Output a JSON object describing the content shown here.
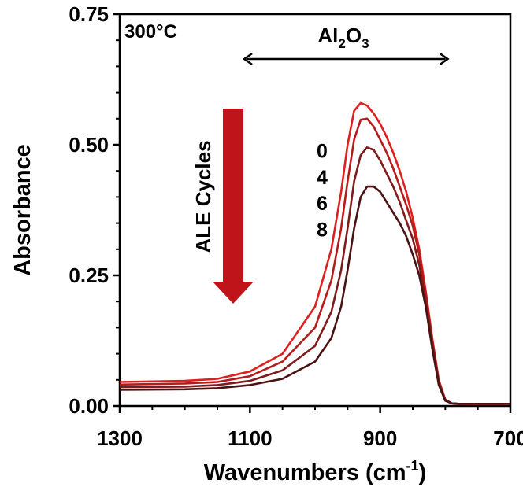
{
  "chart_data": {
    "type": "line",
    "xlabel": "Wavenumbers (cm",
    "xlabel_sup": "-1",
    "xlabel_close": ")",
    "ylabel": "Absorbance",
    "xlim": [
      1300,
      700
    ],
    "ylim": [
      0,
      0.75
    ],
    "xticks": [
      1300,
      1100,
      900,
      700
    ],
    "xtick_labels": [
      "1300",
      "1100",
      "900",
      "700"
    ],
    "yticks": [
      0,
      0.25,
      0.5,
      0.75
    ],
    "ytick_labels": [
      "0.00",
      "0.25",
      "0.50",
      "0.75"
    ],
    "x_reversed": true,
    "grid": false,
    "annotations": {
      "temperature": "300°C",
      "region_label": "Al",
      "region_sub1": "2",
      "region_mid": "O",
      "region_sub2": "3",
      "region_range": [
        1110,
        795
      ],
      "arrow_label": "ALE Cycles"
    },
    "series": [
      {
        "name": "0",
        "color": "#dd1f1f",
        "x": [
          1300,
          1200,
          1150,
          1100,
          1050,
          1000,
          975,
          960,
          950,
          940,
          930,
          920,
          910,
          900,
          890,
          880,
          870,
          860,
          850,
          840,
          830,
          820,
          810,
          800,
          790,
          780,
          760,
          740,
          720,
          700
        ],
        "y": [
          0.046,
          0.048,
          0.052,
          0.066,
          0.1,
          0.19,
          0.3,
          0.41,
          0.5,
          0.565,
          0.58,
          0.575,
          0.56,
          0.54,
          0.515,
          0.485,
          0.45,
          0.41,
          0.36,
          0.3,
          0.22,
          0.13,
          0.05,
          0.012,
          0.005,
          0.004,
          0.004,
          0.004,
          0.004,
          0.004
        ]
      },
      {
        "name": "4",
        "color": "#b61a1a",
        "x": [
          1300,
          1200,
          1150,
          1100,
          1050,
          1000,
          975,
          960,
          950,
          940,
          930,
          920,
          910,
          900,
          890,
          880,
          870,
          860,
          850,
          840,
          830,
          820,
          810,
          800,
          790,
          780,
          760,
          740,
          720,
          700
        ],
        "y": [
          0.041,
          0.043,
          0.046,
          0.057,
          0.085,
          0.15,
          0.24,
          0.34,
          0.43,
          0.51,
          0.548,
          0.55,
          0.535,
          0.51,
          0.485,
          0.455,
          0.42,
          0.385,
          0.345,
          0.29,
          0.215,
          0.125,
          0.045,
          0.012,
          0.005,
          0.004,
          0.004,
          0.004,
          0.004,
          0.004
        ]
      },
      {
        "name": "6",
        "color": "#7f1b1b",
        "x": [
          1300,
          1200,
          1150,
          1100,
          1050,
          1000,
          975,
          960,
          950,
          940,
          930,
          920,
          910,
          900,
          890,
          880,
          870,
          860,
          850,
          840,
          830,
          820,
          810,
          800,
          790,
          780,
          760,
          740,
          720,
          700
        ],
        "y": [
          0.036,
          0.037,
          0.04,
          0.048,
          0.068,
          0.115,
          0.18,
          0.26,
          0.34,
          0.43,
          0.48,
          0.495,
          0.49,
          0.47,
          0.445,
          0.42,
          0.39,
          0.355,
          0.32,
          0.27,
          0.2,
          0.12,
          0.045,
          0.012,
          0.005,
          0.004,
          0.004,
          0.004,
          0.004,
          0.004
        ]
      },
      {
        "name": "8",
        "color": "#4a1212",
        "x": [
          1300,
          1200,
          1150,
          1100,
          1050,
          1000,
          975,
          960,
          950,
          940,
          930,
          920,
          910,
          900,
          890,
          880,
          870,
          860,
          850,
          840,
          830,
          820,
          810,
          800,
          790,
          780,
          760,
          740,
          720,
          700
        ],
        "y": [
          0.031,
          0.032,
          0.034,
          0.04,
          0.052,
          0.085,
          0.13,
          0.19,
          0.26,
          0.34,
          0.4,
          0.42,
          0.42,
          0.41,
          0.39,
          0.37,
          0.35,
          0.325,
          0.29,
          0.25,
          0.19,
          0.11,
          0.04,
          0.01,
          0.005,
          0.004,
          0.004,
          0.004,
          0.004,
          0.004
        ]
      }
    ]
  }
}
